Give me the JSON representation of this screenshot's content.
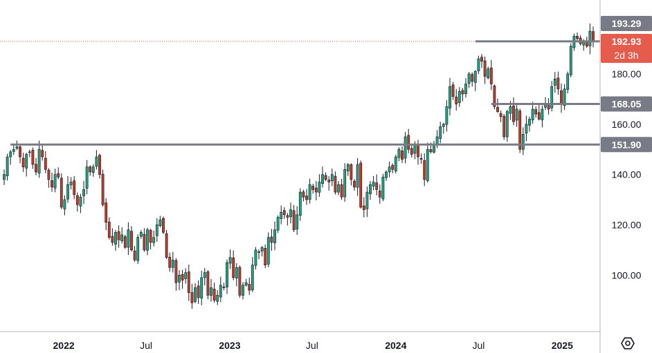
{
  "chart_data": {
    "type": "candlestick",
    "title": "",
    "xlabel": "",
    "ylabel": "",
    "ylim": [
      77,
      208
    ],
    "y_ticks": [
      "100.00",
      "120.00",
      "140.00",
      "160.00",
      "180.00"
    ],
    "x_ticks": [
      {
        "label": "2022",
        "date": "2022-01-01",
        "bold": true
      },
      {
        "label": "Jul",
        "date": "2022-07-01",
        "bold": false
      },
      {
        "label": "2023",
        "date": "2023-01-01",
        "bold": true
      },
      {
        "label": "Jul",
        "date": "2023-07-01",
        "bold": false
      },
      {
        "label": "2024",
        "date": "2024-01-01",
        "bold": true
      },
      {
        "label": "Jul",
        "date": "2024-07-01",
        "bold": false
      },
      {
        "label": "2025",
        "date": "2025-01-01",
        "bold": true
      }
    ],
    "timeframe": "weekly",
    "first_week": "2021-08-23",
    "closes": [
      140,
      147,
      149,
      150,
      151,
      147,
      143,
      148,
      149,
      144,
      141,
      150,
      147,
      142,
      138,
      135,
      140,
      139,
      127,
      130,
      136,
      137,
      132,
      128,
      131,
      134,
      143,
      141,
      143,
      147,
      140,
      128,
      121,
      115,
      113,
      117,
      114,
      116,
      111,
      118,
      110,
      106,
      115,
      117,
      110,
      118,
      113,
      115,
      120,
      122,
      117,
      107,
      103,
      106,
      97,
      100,
      98,
      101,
      93,
      89,
      95,
      91,
      99,
      101,
      92,
      95,
      90,
      92,
      96,
      95,
      105,
      107,
      99,
      103,
      92,
      96,
      97,
      94,
      104,
      110,
      109,
      111,
      104,
      115,
      113,
      118,
      123,
      125,
      124,
      123,
      126,
      118,
      124,
      133,
      131,
      130,
      136,
      134,
      133,
      137,
      140,
      138,
      137,
      140,
      133,
      136,
      131,
      142,
      144,
      138,
      135,
      144,
      127,
      126,
      133,
      136,
      137,
      134,
      131,
      139,
      141,
      143,
      142,
      147,
      150,
      146,
      155,
      150,
      148,
      152,
      147,
      146,
      138,
      150,
      149,
      152,
      155,
      159,
      160,
      167,
      175,
      171,
      168,
      173,
      172,
      176,
      180,
      177,
      181,
      186,
      185,
      179,
      182,
      176,
      167,
      165,
      163,
      155,
      165,
      167,
      161,
      166,
      150,
      156,
      160,
      162,
      166,
      164,
      162,
      166,
      168,
      166,
      175,
      178,
      174,
      168,
      174,
      180,
      191,
      195,
      194,
      192,
      193,
      191,
      197,
      193
    ]
  },
  "price_levels": [
    {
      "name": "level-193",
      "value": 193.29,
      "label": "193.29",
      "color": "#787b86",
      "line": false
    },
    {
      "name": "level-current",
      "value": 192.93,
      "label": "192.93",
      "sublabel": "2d 3h",
      "color": "#e55b4c",
      "line": false
    },
    {
      "name": "level-168",
      "value": 168.05,
      "label": "168.05",
      "color": "#787b86",
      "line": true,
      "from_date": "2024-07-29"
    },
    {
      "name": "level-152",
      "value": 151.9,
      "label": "151.90",
      "color": "#787b86",
      "line": true,
      "from_date": "2021-09-06"
    }
  ],
  "resistance_line": {
    "value": 192.93,
    "from_date": "2024-06-24"
  },
  "colors": {
    "up": "#26a69a",
    "down": "#ef5350",
    "up_chart": "#22a382",
    "down_chart": "#c23b22",
    "line": "#787b86",
    "current": "#e55b4c"
  },
  "icons": {
    "settings": "hexagon-gear-icon"
  }
}
